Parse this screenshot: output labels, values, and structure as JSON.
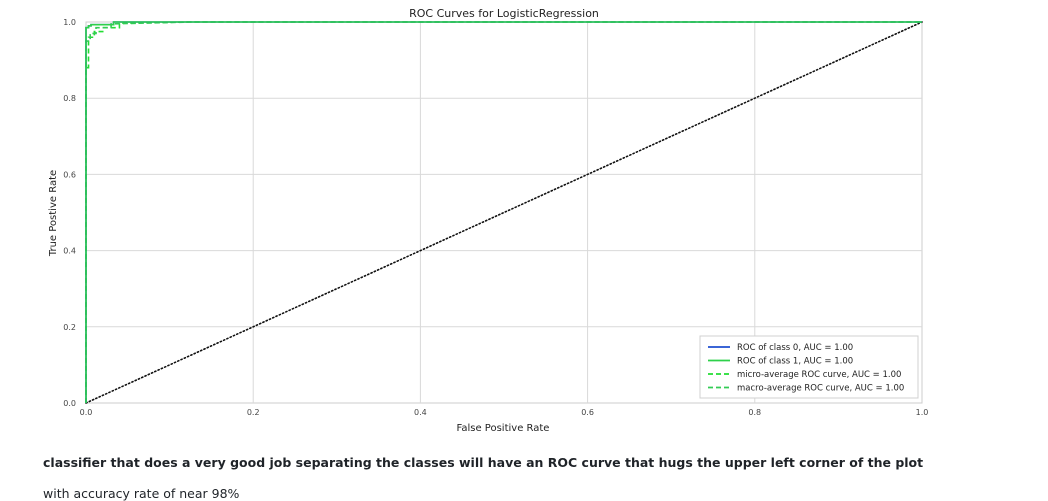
{
  "chart_data": {
    "type": "line",
    "title": "ROC Curves for LogisticRegression",
    "xlabel": "False Positive Rate",
    "ylabel": "True Postive Rate",
    "xlim": [
      0.0,
      1.0
    ],
    "ylim": [
      0.0,
      1.0
    ],
    "x_ticks": [
      "0.0",
      "0.2",
      "0.4",
      "0.6",
      "0.8",
      "1.0"
    ],
    "y_ticks": [
      "0.0",
      "0.2",
      "0.4",
      "0.6",
      "0.8",
      "1.0"
    ],
    "grid": true,
    "legend_position": "lower-right",
    "diagonal": {
      "x": [
        0.0,
        1.0
      ],
      "y": [
        0.0,
        1.0
      ],
      "style": "dotted",
      "color": "#111111"
    },
    "series": [
      {
        "name": "ROC of class 0, AUC = 1.00",
        "color": "#1f4fd1",
        "style": "solid",
        "x": [
          0.0,
          0.0,
          0.003,
          0.003,
          0.006,
          0.006,
          0.033,
          0.033,
          0.125,
          1.0
        ],
        "y": [
          0.0,
          0.985,
          0.985,
          0.99,
          0.99,
          0.993,
          0.993,
          1.0,
          1.0,
          1.0
        ]
      },
      {
        "name": "ROC of class 1, AUC = 1.00",
        "color": "#2ed04a",
        "style": "solid",
        "x": [
          0.0,
          0.0,
          0.003,
          0.003,
          0.006,
          0.006,
          0.033,
          0.033,
          0.125,
          1.0
        ],
        "y": [
          0.0,
          0.985,
          0.985,
          0.99,
          0.99,
          0.993,
          0.993,
          1.0,
          1.0,
          1.0
        ]
      },
      {
        "name": "micro-average ROC curve, AUC = 1.00",
        "color": "#22dd33",
        "style": "dashed",
        "x": [
          0.0,
          0.0,
          0.003,
          0.003,
          0.01,
          0.01,
          0.02,
          0.02,
          0.04,
          0.04,
          0.125,
          1.0
        ],
        "y": [
          0.0,
          0.88,
          0.88,
          0.96,
          0.96,
          0.975,
          0.975,
          0.985,
          0.985,
          0.997,
          1.0,
          1.0
        ]
      },
      {
        "name": "macro-average ROC curve, AUC = 1.00",
        "color": "#33cc55",
        "style": "dashed",
        "x": [
          0.0,
          0.0,
          0.005,
          0.005,
          0.012,
          0.012,
          0.03,
          0.03,
          0.125,
          1.0
        ],
        "y": [
          0.0,
          0.95,
          0.95,
          0.97,
          0.97,
          0.985,
          0.985,
          0.995,
          1.0,
          1.0
        ]
      }
    ]
  },
  "caption": {
    "bold_text": "classifier that does a very good job separating the classes will have an ROC curve that hugs the upper left corner of the plot",
    "normal_text": "with accuracy rate of near 98%"
  }
}
